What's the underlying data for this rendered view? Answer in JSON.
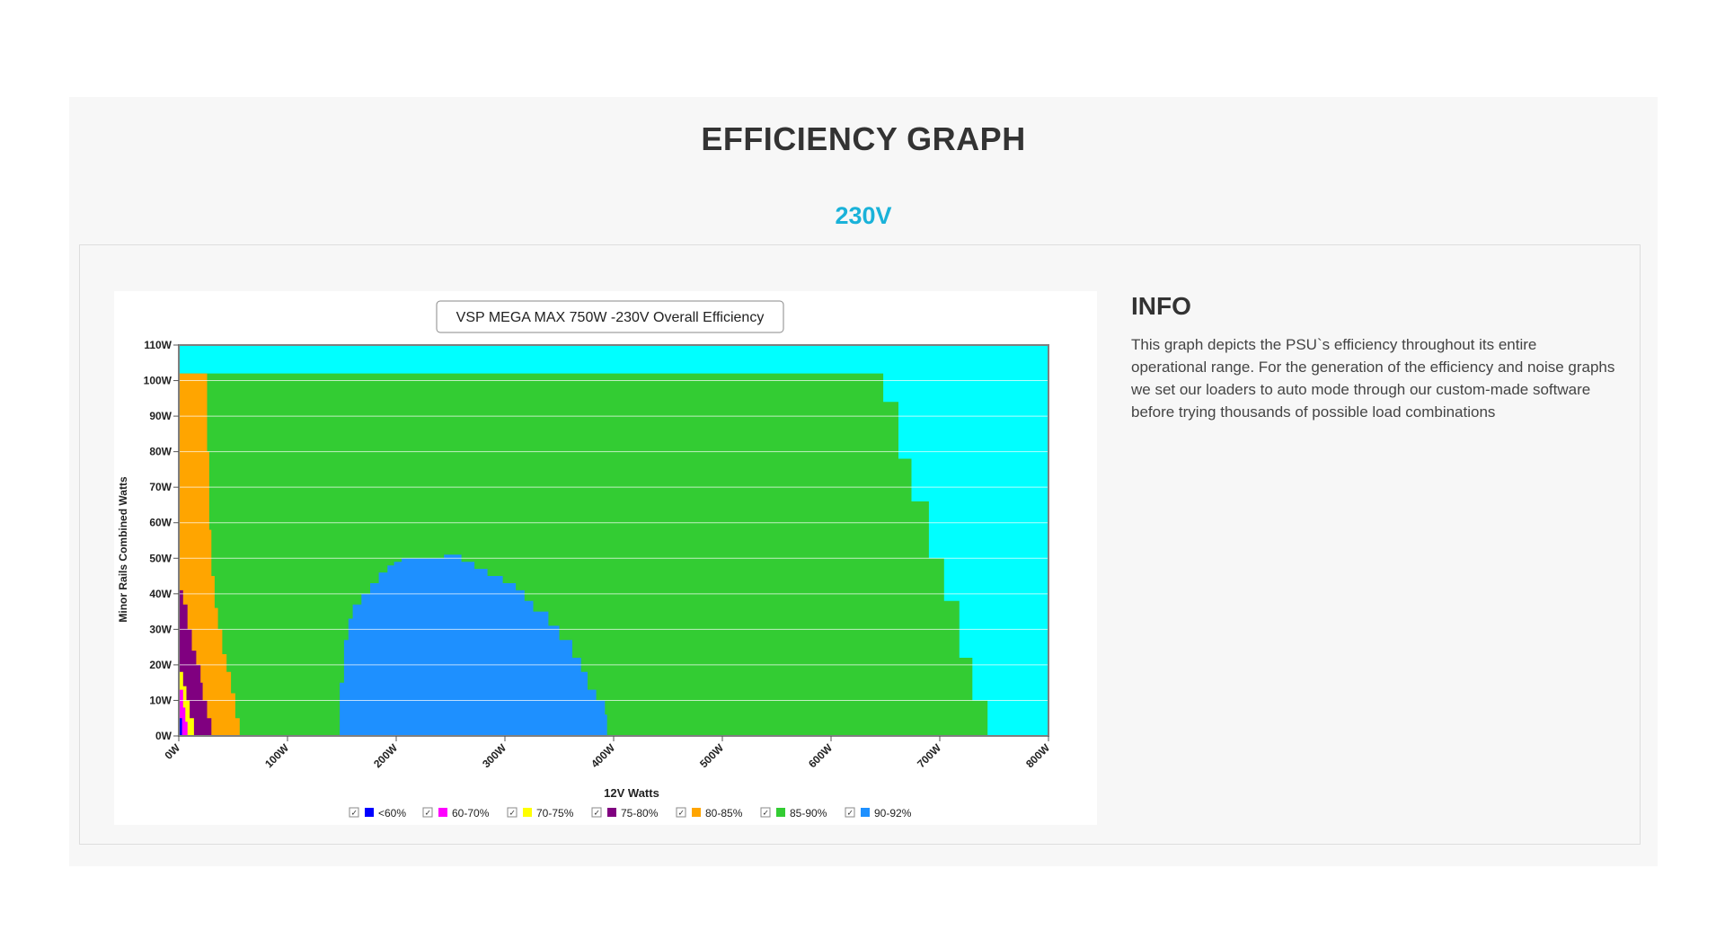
{
  "page": {
    "title": "EFFICIENCY GRAPH",
    "voltage_label": "230V"
  },
  "info": {
    "title": "INFO",
    "text": "This graph depicts the PSU`s efficiency throughout its entire operational range. For the generation of the efficiency and noise graphs we set our loaders to auto mode through our custom-made software before trying thousands of possible load combinations"
  },
  "colors": {
    "background_zone": "#00ffff",
    "lt60": "#0000ff",
    "60_70": "#ff00ff",
    "70_75": "#ffff00",
    "75_80": "#800080",
    "80_85": "#ffa500",
    "85_90": "#33cc33",
    "90_92": "#1e90ff"
  },
  "chart_data": {
    "type": "area",
    "title": "VSP MEGA MAX 750W -230V Overall Efficiency",
    "xlabel": "12V Watts",
    "ylabel": "Minor Rails Combined Watts",
    "xlim": [
      0,
      800
    ],
    "ylim": [
      0,
      110
    ],
    "x_ticks": [
      "0W",
      "100W",
      "200W",
      "300W",
      "400W",
      "500W",
      "600W",
      "700W",
      "800W"
    ],
    "y_ticks": [
      "0W",
      "10W",
      "20W",
      "30W",
      "40W",
      "50W",
      "60W",
      "70W",
      "80W",
      "90W",
      "100W",
      "110W"
    ],
    "grid": true,
    "legend_position": "bottom",
    "series": [
      {
        "name": "85-90%",
        "color": "#33cc33",
        "points": [
          [
            0,
            0
          ],
          [
            0,
            102
          ],
          [
            648,
            102
          ],
          [
            648,
            94
          ],
          [
            662,
            94
          ],
          [
            662,
            78
          ],
          [
            674,
            78
          ],
          [
            674,
            66
          ],
          [
            690,
            66
          ],
          [
            690,
            50
          ],
          [
            704,
            50
          ],
          [
            704,
            38
          ],
          [
            718,
            38
          ],
          [
            718,
            22
          ],
          [
            730,
            22
          ],
          [
            730,
            10
          ],
          [
            744,
            10
          ],
          [
            744,
            0
          ]
        ]
      },
      {
        "name": "80-85%",
        "color": "#ffa500",
        "points": [
          [
            0,
            0
          ],
          [
            0,
            102
          ],
          [
            26,
            102
          ],
          [
            26,
            80
          ],
          [
            28,
            80
          ],
          [
            28,
            58
          ],
          [
            30,
            58
          ],
          [
            30,
            45
          ],
          [
            33,
            45
          ],
          [
            33,
            36
          ],
          [
            36,
            36
          ],
          [
            36,
            30
          ],
          [
            40,
            30
          ],
          [
            40,
            23
          ],
          [
            44,
            23
          ],
          [
            44,
            18
          ],
          [
            48,
            18
          ],
          [
            48,
            12
          ],
          [
            52,
            12
          ],
          [
            52,
            5
          ],
          [
            56,
            5
          ],
          [
            56,
            0
          ]
        ]
      },
      {
        "name": "75-80%",
        "color": "#800080",
        "points": [
          [
            0,
            0
          ],
          [
            0,
            41
          ],
          [
            4,
            41
          ],
          [
            4,
            37
          ],
          [
            8,
            37
          ],
          [
            8,
            30
          ],
          [
            12,
            30
          ],
          [
            12,
            24
          ],
          [
            16,
            24
          ],
          [
            16,
            20
          ],
          [
            20,
            20
          ],
          [
            20,
            15
          ],
          [
            22,
            15
          ],
          [
            22,
            10
          ],
          [
            26,
            10
          ],
          [
            26,
            5
          ],
          [
            30,
            5
          ],
          [
            30,
            0
          ]
        ]
      },
      {
        "name": "70-75%",
        "color": "#ffff00",
        "points": [
          [
            0,
            0
          ],
          [
            0,
            18
          ],
          [
            4,
            18
          ],
          [
            4,
            14
          ],
          [
            7,
            14
          ],
          [
            7,
            10
          ],
          [
            10,
            10
          ],
          [
            10,
            5
          ],
          [
            14,
            5
          ],
          [
            14,
            0
          ]
        ]
      },
      {
        "name": "60-70%",
        "color": "#ff00ff",
        "points": [
          [
            0,
            0
          ],
          [
            0,
            13
          ],
          [
            4,
            13
          ],
          [
            4,
            8
          ],
          [
            6,
            8
          ],
          [
            6,
            4
          ],
          [
            8,
            4
          ],
          [
            8,
            0
          ]
        ]
      },
      {
        "name": "<60%",
        "color": "#0000ff",
        "points": [
          [
            0,
            0
          ],
          [
            0,
            5
          ],
          [
            3,
            5
          ],
          [
            3,
            0
          ]
        ]
      },
      {
        "name": "90-92%",
        "color": "#1e90ff",
        "points": [
          [
            148,
            0
          ],
          [
            148,
            15
          ],
          [
            152,
            15
          ],
          [
            152,
            27
          ],
          [
            156,
            27
          ],
          [
            156,
            33
          ],
          [
            160,
            33
          ],
          [
            160,
            37
          ],
          [
            168,
            37
          ],
          [
            168,
            40
          ],
          [
            176,
            40
          ],
          [
            176,
            43
          ],
          [
            184,
            43
          ],
          [
            184,
            46
          ],
          [
            192,
            46
          ],
          [
            192,
            48
          ],
          [
            198,
            48
          ],
          [
            198,
            49
          ],
          [
            205,
            49
          ],
          [
            205,
            50
          ],
          [
            218,
            50
          ],
          [
            218,
            50
          ],
          [
            244,
            50
          ],
          [
            244,
            51
          ],
          [
            260,
            51
          ],
          [
            260,
            49
          ],
          [
            272,
            49
          ],
          [
            272,
            47
          ],
          [
            284,
            47
          ],
          [
            284,
            45
          ],
          [
            298,
            45
          ],
          [
            298,
            43
          ],
          [
            310,
            43
          ],
          [
            310,
            41
          ],
          [
            318,
            41
          ],
          [
            318,
            38
          ],
          [
            326,
            38
          ],
          [
            326,
            35
          ],
          [
            340,
            35
          ],
          [
            340,
            31
          ],
          [
            350,
            31
          ],
          [
            350,
            27
          ],
          [
            362,
            27
          ],
          [
            362,
            22
          ],
          [
            370,
            22
          ],
          [
            370,
            18
          ],
          [
            376,
            18
          ],
          [
            376,
            13
          ],
          [
            384,
            13
          ],
          [
            384,
            10
          ],
          [
            392,
            10
          ],
          [
            392,
            6
          ],
          [
            394,
            6
          ],
          [
            394,
            0
          ]
        ]
      }
    ]
  }
}
